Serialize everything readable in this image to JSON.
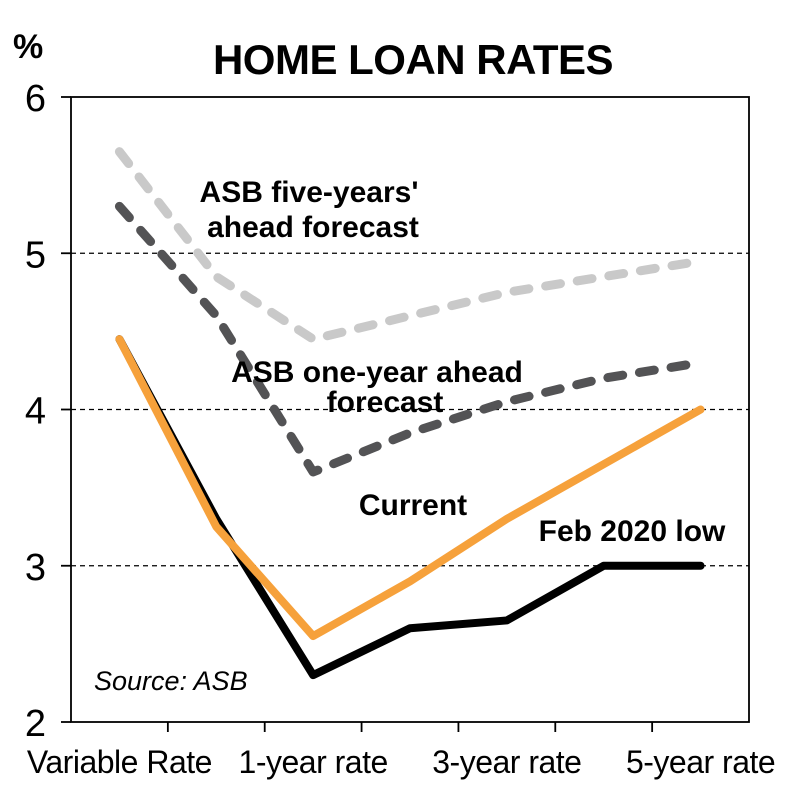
{
  "chart_data": {
    "type": "line",
    "title": "HOME LOAN RATES",
    "ylabel": "%",
    "xlabel": "",
    "ylim": [
      2,
      6
    ],
    "yticks": [
      6,
      5,
      4,
      3,
      2
    ],
    "gridlines": [
      5,
      4,
      3
    ],
    "grid_style": "horizontal dotted",
    "legend_position": "inline annotations",
    "categories": [
      "Variable Rate",
      "",
      "1-year rate",
      "",
      "3-year rate",
      "",
      "5-year rate"
    ],
    "series": [
      {
        "name": "ASB five-years' ahead forecast",
        "style": "dashed",
        "color": "#c9c9c9",
        "values": [
          5.65,
          4.85,
          4.45,
          4.6,
          4.75,
          4.85,
          4.95
        ]
      },
      {
        "name": "ASB one-year ahead forecast",
        "style": "dashed",
        "color": "#535355",
        "values": [
          5.3,
          4.6,
          3.6,
          3.85,
          4.05,
          4.2,
          4.3
        ]
      },
      {
        "name": "Feb 2020 low",
        "style": "solid",
        "color": "#000000",
        "values": [
          4.45,
          3.3,
          2.3,
          2.6,
          2.65,
          3.0,
          3.0
        ]
      },
      {
        "name": "Current",
        "style": "solid",
        "color": "#f6a13b",
        "values": [
          4.45,
          3.25,
          2.55,
          2.9,
          3.3,
          3.65,
          4.0
        ]
      }
    ],
    "annotations": {
      "five_year_line1": "ASB five-years'",
      "five_year_line2": "ahead forecast",
      "one_year_line1": "ASB one-year ahead",
      "one_year_line2": "forecast",
      "current": "Current",
      "feb_low": "Feb 2020 low"
    },
    "source": "Source: ASB"
  },
  "colors": {
    "current_line": "#f6a13b",
    "feb_2020_low_line": "#000000",
    "one_year_forecast_line": "#535355",
    "five_year_forecast_line": "#c9c9c9",
    "axis": "#000000",
    "background": "#ffffff"
  }
}
